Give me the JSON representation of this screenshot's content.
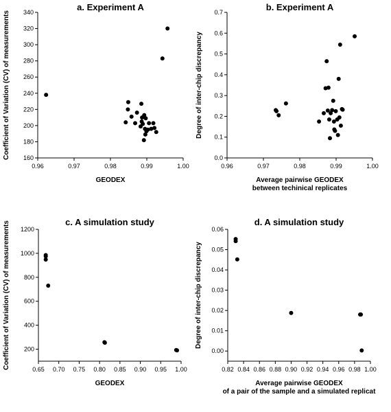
{
  "chart_data": [
    {
      "type": "scatter",
      "title": "a.  Experiment A",
      "xlabel": [
        "GEODEX"
      ],
      "ylabel": "Coefficient of Variation (CV) of measurements",
      "xlim": [
        0.96,
        1.0
      ],
      "ylim": [
        160,
        340
      ],
      "xticks": [
        0.96,
        0.97,
        0.98,
        0.99,
        1.0
      ],
      "xtick_labels": [
        "0.96",
        "0.97",
        "0.98",
        "0.99",
        "1.00"
      ],
      "yticks": [
        160,
        180,
        200,
        220,
        240,
        260,
        280,
        300,
        320,
        340
      ],
      "ytick_labels": [
        "160",
        "180",
        "200",
        "220",
        "240",
        "260",
        "280",
        "300",
        "320",
        "340"
      ],
      "points": [
        [
          0.9623,
          238
        ],
        [
          0.9842,
          204
        ],
        [
          0.9848,
          220
        ],
        [
          0.9849,
          229
        ],
        [
          0.9858,
          211
        ],
        [
          0.9868,
          203
        ],
        [
          0.9873,
          216
        ],
        [
          0.9883,
          199
        ],
        [
          0.9885,
          227
        ],
        [
          0.9886,
          205
        ],
        [
          0.9887,
          210
        ],
        [
          0.9889,
          202
        ],
        [
          0.9892,
          182
        ],
        [
          0.9893,
          213
        ],
        [
          0.9895,
          196
        ],
        [
          0.9896,
          189
        ],
        [
          0.9897,
          209
        ],
        [
          0.9899,
          193
        ],
        [
          0.9903,
          195
        ],
        [
          0.9906,
          203
        ],
        [
          0.9912,
          196
        ],
        [
          0.9918,
          203
        ],
        [
          0.9921,
          197
        ],
        [
          0.9926,
          192
        ],
        [
          0.9943,
          283
        ],
        [
          0.9957,
          320
        ]
      ]
    },
    {
      "type": "scatter",
      "title": "b. Experiment A",
      "xlabel": [
        "Average pairwise GEODEX",
        "between techinical replicates"
      ],
      "ylabel": "Degree of inter-chip discrepancy",
      "xlim": [
        0.96,
        1.0
      ],
      "ylim": [
        0.0,
        0.7
      ],
      "xticks": [
        0.96,
        0.97,
        0.98,
        0.99,
        1.0
      ],
      "xtick_labels": [
        "0.96",
        "0.97",
        "0.98",
        "0.99",
        "1.00"
      ],
      "yticks": [
        0.0,
        0.1,
        0.2,
        0.3,
        0.4,
        0.5,
        0.6,
        0.7
      ],
      "ytick_labels": [
        "0.0",
        "0.1",
        "0.2",
        "0.3",
        "0.4",
        "0.5",
        "0.6",
        "0.7"
      ],
      "points": [
        [
          0.9734,
          0.23
        ],
        [
          0.9736,
          0.225
        ],
        [
          0.9742,
          0.205
        ],
        [
          0.9762,
          0.262
        ],
        [
          0.9853,
          0.175
        ],
        [
          0.9866,
          0.215
        ],
        [
          0.9871,
          0.335
        ],
        [
          0.9874,
          0.465
        ],
        [
          0.9877,
          0.228
        ],
        [
          0.9879,
          0.338
        ],
        [
          0.9881,
          0.185
        ],
        [
          0.9883,
          0.095
        ],
        [
          0.9885,
          0.215
        ],
        [
          0.9889,
          0.23
        ],
        [
          0.9892,
          0.275
        ],
        [
          0.9894,
          0.175
        ],
        [
          0.9895,
          0.137
        ],
        [
          0.9897,
          0.13
        ],
        [
          0.9899,
          0.225
        ],
        [
          0.9903,
          0.185
        ],
        [
          0.9905,
          0.11
        ],
        [
          0.9907,
          0.38
        ],
        [
          0.9909,
          0.195
        ],
        [
          0.9911,
          0.545
        ],
        [
          0.9913,
          0.155
        ],
        [
          0.9916,
          0.235
        ],
        [
          0.9918,
          0.232
        ],
        [
          0.9951,
          0.585
        ]
      ]
    },
    {
      "type": "scatter",
      "title": "c. A simulation study",
      "xlabel": [
        "GEODEX"
      ],
      "ylabel": "Coefficient of Variation (CV) of measurements",
      "xlim": [
        0.65,
        1.0
      ],
      "ylim": [
        100,
        1200
      ],
      "xticks": [
        0.65,
        0.7,
        0.75,
        0.8,
        0.85,
        0.9,
        0.95,
        1.0
      ],
      "xtick_labels": [
        "0.65",
        "0.70",
        "0.75",
        "0.80",
        "0.85",
        "0.90",
        "0.95",
        "1.00"
      ],
      "yticks": [
        200,
        400,
        600,
        800,
        1000,
        1200
      ],
      "ytick_labels": [
        "200",
        "400",
        "600",
        "800",
        "1000",
        "1200"
      ],
      "points": [
        [
          0.668,
          985
        ],
        [
          0.668,
          975
        ],
        [
          0.668,
          948
        ],
        [
          0.674,
          730
        ],
        [
          0.812,
          258
        ],
        [
          0.813,
          254
        ],
        [
          0.988,
          193
        ],
        [
          0.99,
          190
        ]
      ]
    },
    {
      "type": "scatter",
      "title": "d. A simulation study",
      "xlabel": [
        "Average pairwise GEODEX",
        "of a pair of the sample and a simulated replicat"
      ],
      "ylabel": "Degree of inter-chip discrepancy",
      "xlim": [
        0.82,
        1.0
      ],
      "ylim": [
        -0.005,
        0.06
      ],
      "xticks": [
        0.82,
        0.84,
        0.86,
        0.88,
        0.9,
        0.92,
        0.94,
        0.96,
        0.98,
        1.0
      ],
      "xtick_labels": [
        "0.82",
        "0.84",
        "0.86",
        "0.88",
        "0.90",
        "0.92",
        "0.94",
        "0.96",
        "0.98",
        "1.00"
      ],
      "yticks": [
        0.0,
        0.01,
        0.02,
        0.03,
        0.04,
        0.05,
        0.06
      ],
      "ytick_labels": [
        "0.00",
        "0.01",
        "0.02",
        "0.03",
        "0.04",
        "0.05",
        "0.06"
      ],
      "points": [
        [
          0.83,
          0.0552
        ],
        [
          0.83,
          0.0542
        ],
        [
          0.832,
          0.0452
        ],
        [
          0.9,
          0.0188
        ],
        [
          0.987,
          0.018
        ],
        [
          0.988,
          0.018
        ],
        [
          0.989,
          0.0003
        ]
      ]
    }
  ]
}
